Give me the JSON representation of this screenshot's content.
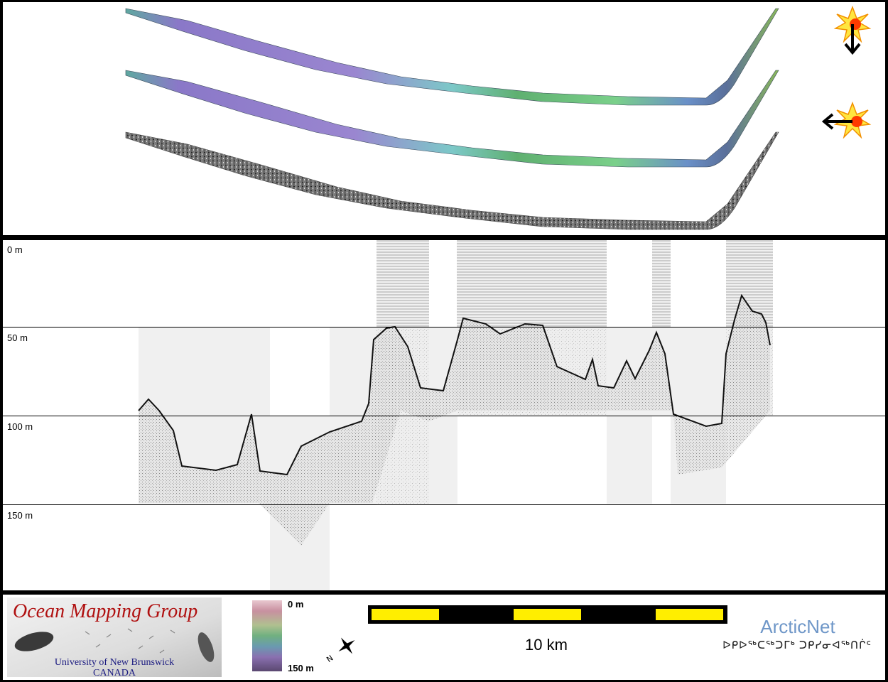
{
  "depth_labels": [
    "0 m",
    "50 m",
    "100 m",
    "150 m"
  ],
  "footer": {
    "logo_title": "Ocean Mapping Group",
    "logo_university": "University of New Brunswick",
    "logo_country": "CANADA",
    "colorbar_top": "0 m",
    "colorbar_bottom": "150 m",
    "scale_label": "10 km",
    "partner_name": "ArcticNet",
    "partner_syllabics": "ᐅᑭᐅᖅᑕᖅᑐᒥᒃ ᑐᑭᓯᓂᐊᖅᑎᒌᑦ"
  },
  "colors": {
    "scale_bar_dark": "#000000",
    "scale_bar_light": "#ffee00",
    "logo_red": "#b01010",
    "arcticnet_blue": "#6f97c8"
  },
  "icons": {
    "illumination_top": "sun-arrow-down-icon",
    "illumination_side": "sun-arrow-left-icon",
    "north_arrow": "north-arrow-icon"
  }
}
